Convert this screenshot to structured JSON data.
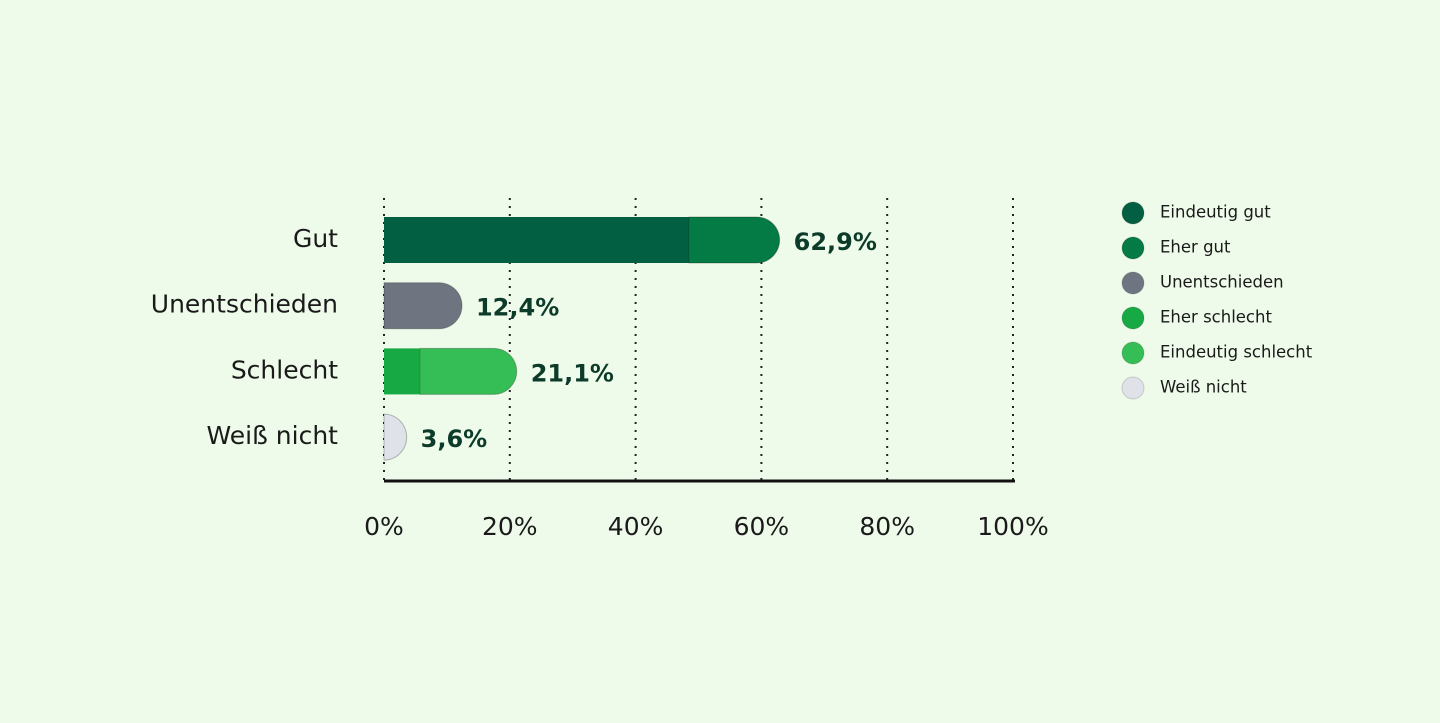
{
  "chart_data": {
    "type": "stacked-barh",
    "categories": [
      "Gut",
      "Unentschieden",
      "Schlecht",
      "Weiß nicht"
    ],
    "series": [
      {
        "name": "Eindeutig gut",
        "color": "#035f41",
        "values": [
          48.5,
          null,
          null,
          null
        ]
      },
      {
        "name": "Eher gut",
        "color": "#047a45",
        "values": [
          14.4,
          null,
          null,
          null
        ]
      },
      {
        "name": "Unentschieden",
        "color": "#6e7580",
        "values": [
          null,
          12.4,
          null,
          null
        ]
      },
      {
        "name": "Eher schlecht",
        "color": "#17a944",
        "values": [
          null,
          null,
          5.7,
          null
        ]
      },
      {
        "name": "Eindeutig schlecht",
        "color": "#35be55",
        "values": [
          null,
          null,
          15.4,
          null
        ]
      },
      {
        "name": "Weiß nicht",
        "color": "#dfe2e8",
        "values": [
          null,
          null,
          null,
          3.6
        ]
      }
    ],
    "totals": [
      62.9,
      12.4,
      21.1,
      3.6
    ],
    "total_labels": [
      "62,9%",
      "12,4%",
      "21,1%",
      "3,6%"
    ],
    "xlim": [
      0,
      100
    ],
    "xticks": [
      {
        "value": 0,
        "label": "0%"
      },
      {
        "value": 20,
        "label": "20%"
      },
      {
        "value": 40,
        "label": "40%"
      },
      {
        "value": 60,
        "label": "60%"
      },
      {
        "value": 80,
        "label": "80%"
      },
      {
        "value": 100,
        "label": "100%"
      }
    ],
    "grid": true,
    "legend": "right"
  }
}
